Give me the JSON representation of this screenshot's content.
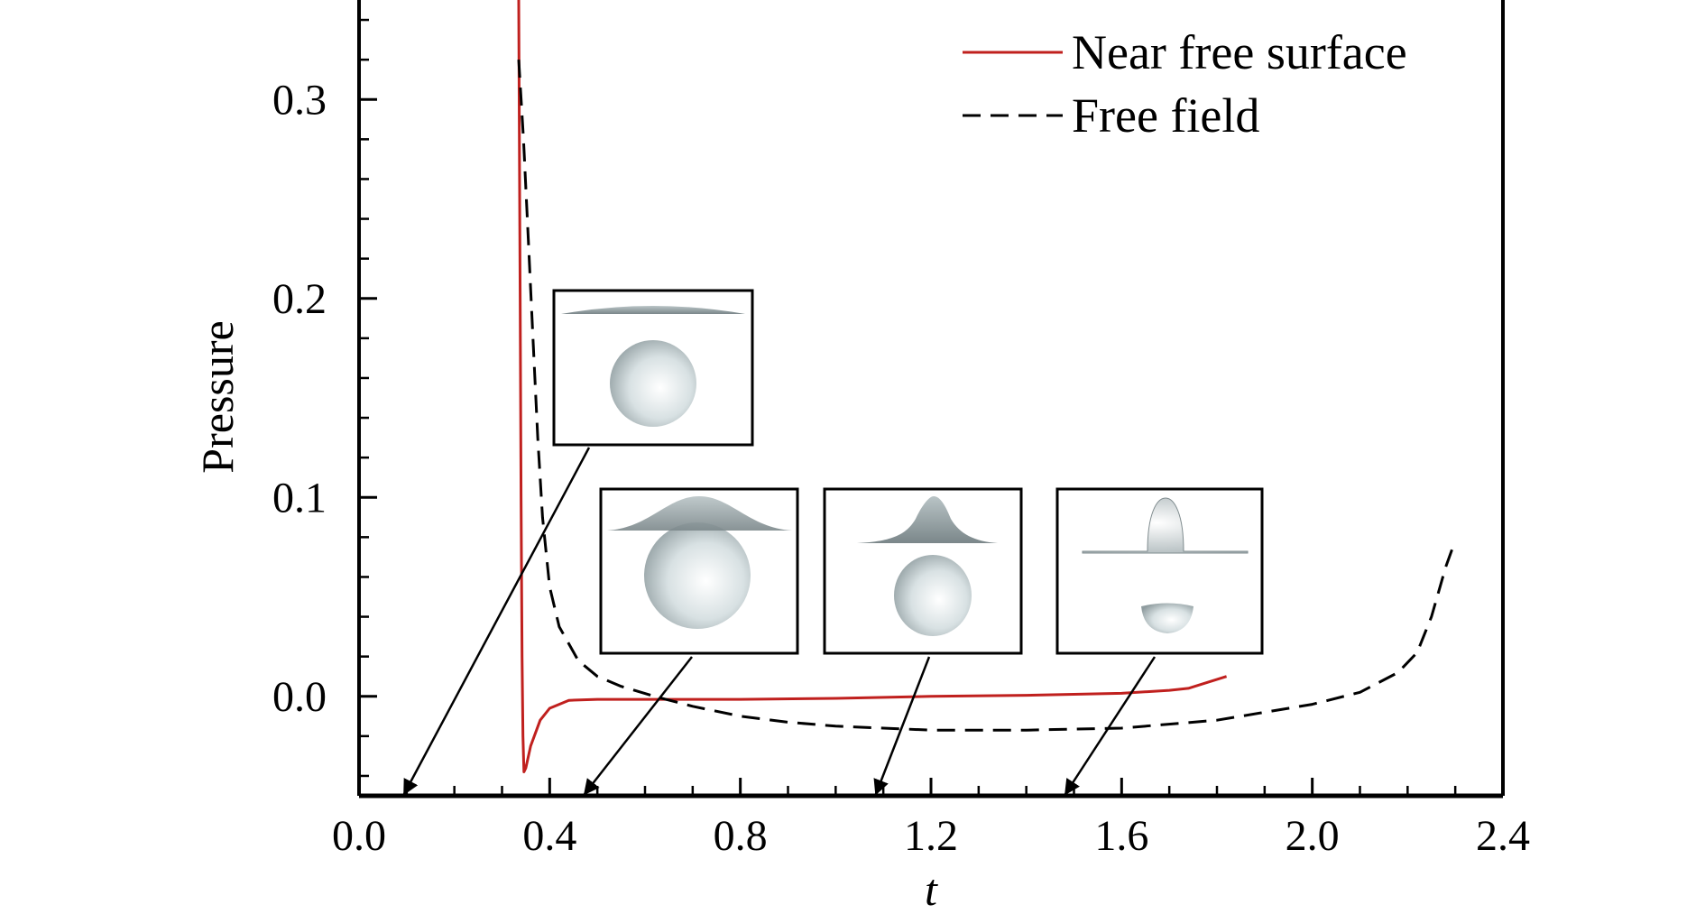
{
  "chart_data": {
    "type": "line",
    "title": "",
    "xlabel": "t",
    "ylabel": "Pressure",
    "xlim": [
      0.0,
      2.4
    ],
    "ylim": [
      -0.05,
      0.35
    ],
    "x_ticks": [
      "0.0",
      "0.4",
      "0.8",
      "1.2",
      "1.6",
      "2.0",
      "2.4"
    ],
    "y_ticks": [
      "0.0",
      "0.1",
      "0.2",
      "0.3"
    ],
    "legend_position": "top-right",
    "grid": false,
    "series": [
      {
        "name": "Near free surface",
        "color": "#c0201e",
        "style": "solid",
        "points": [
          [
            0.335,
            0.35
          ],
          [
            0.336,
            0.3
          ],
          [
            0.338,
            0.2
          ],
          [
            0.34,
            0.1
          ],
          [
            0.342,
            0.02
          ],
          [
            0.344,
            -0.02
          ],
          [
            0.346,
            -0.038
          ],
          [
            0.35,
            -0.036
          ],
          [
            0.36,
            -0.025
          ],
          [
            0.38,
            -0.012
          ],
          [
            0.4,
            -0.006
          ],
          [
            0.44,
            -0.002
          ],
          [
            0.5,
            -0.0015
          ],
          [
            0.6,
            -0.0015
          ],
          [
            0.8,
            -0.0015
          ],
          [
            1.0,
            -0.001
          ],
          [
            1.2,
            0.0
          ],
          [
            1.4,
            0.0005
          ],
          [
            1.6,
            0.0015
          ],
          [
            1.7,
            0.003
          ],
          [
            1.74,
            0.004
          ],
          [
            1.78,
            0.007
          ],
          [
            1.82,
            0.01
          ]
        ]
      },
      {
        "name": "Free field",
        "color": "#000000",
        "style": "dashed",
        "points": [
          [
            0.335,
            0.32
          ],
          [
            0.345,
            0.28
          ],
          [
            0.355,
            0.23
          ],
          [
            0.365,
            0.18
          ],
          [
            0.375,
            0.13
          ],
          [
            0.385,
            0.09
          ],
          [
            0.4,
            0.055
          ],
          [
            0.42,
            0.035
          ],
          [
            0.46,
            0.018
          ],
          [
            0.5,
            0.01
          ],
          [
            0.55,
            0.005
          ],
          [
            0.62,
            0.0
          ],
          [
            0.7,
            -0.005
          ],
          [
            0.8,
            -0.01
          ],
          [
            0.9,
            -0.013
          ],
          [
            1.0,
            -0.015
          ],
          [
            1.1,
            -0.016
          ],
          [
            1.2,
            -0.017
          ],
          [
            1.4,
            -0.017
          ],
          [
            1.6,
            -0.016
          ],
          [
            1.8,
            -0.012
          ],
          [
            1.9,
            -0.008
          ],
          [
            2.0,
            -0.004
          ],
          [
            2.1,
            0.002
          ],
          [
            2.18,
            0.012
          ],
          [
            2.22,
            0.022
          ],
          [
            2.25,
            0.04
          ],
          [
            2.28,
            0.065
          ],
          [
            2.295,
            0.075
          ],
          [
            2.3,
            0.078
          ]
        ]
      }
    ]
  }
}
